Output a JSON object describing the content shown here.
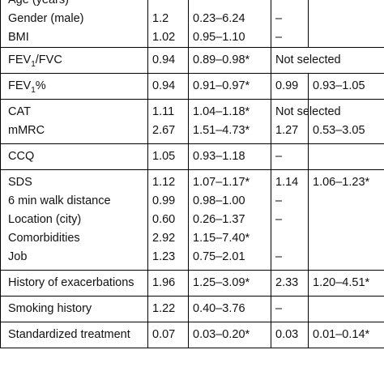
{
  "rows": [
    {
      "lines": [
        {
          "name": "Age (years)",
          "or": "",
          "ci": "",
          "or2": "",
          "ci2": ""
        },
        {
          "name": "Gender (male)",
          "or": "1.2",
          "ci": "0.23–6.24",
          "or2": "–",
          "ci2": ""
        },
        {
          "name": "BMI",
          "or": "1.02",
          "ci": "0.95–1.10",
          "or2": "–",
          "ci2": ""
        }
      ]
    },
    {
      "lines": [
        {
          "name_pre": "FEV",
          "name_sub": "1",
          "name_post": "/FVC",
          "or": "0.94",
          "ci": "0.89–0.98*",
          "or2": "Not selected",
          "ci2": ""
        }
      ],
      "merged": true
    },
    {
      "lines": [
        {
          "name_pre": "FEV",
          "name_sub": "1",
          "name_post": "%",
          "or": "0.94",
          "ci": "0.91–0.97*",
          "or2": "0.99",
          "ci2": "0.93–1.05"
        }
      ]
    },
    {
      "lines": [
        {
          "name": "CAT",
          "or": "1.11",
          "ci": "1.04–1.18*",
          "or2": "Not selected",
          "ci2": "",
          "merged": true
        },
        {
          "name": "mMRC",
          "or": "2.67",
          "ci": "1.51–4.73*",
          "or2": "1.27",
          "ci2": "0.53–3.05"
        }
      ]
    },
    {
      "lines": [
        {
          "name": "CCQ",
          "or": "1.05",
          "ci": "0.93–1.18",
          "or2": "–",
          "ci2": ""
        }
      ]
    },
    {
      "lines": [
        {
          "name": "SDS",
          "or": "1.12",
          "ci": "1.07–1.17*",
          "or2": "1.14",
          "ci2": "1.06–1.23*"
        },
        {
          "name": "6 min walk distance",
          "or": "0.99",
          "ci": "0.98–1.00",
          "or2": "–",
          "ci2": ""
        },
        {
          "name": "Location (city)",
          "or": "0.60",
          "ci": "0.26–1.37",
          "or2": "–",
          "ci2": ""
        },
        {
          "name": "Comorbidities",
          "or": "2.92",
          "ci": "1.15–7.40*",
          "or2": "",
          "ci2": ""
        },
        {
          "name": "Job",
          "or": "1.23",
          "ci": "0.75–2.01",
          "or2": "–",
          "ci2": ""
        }
      ]
    },
    {
      "lines": [
        {
          "name": "History of exacerbations",
          "or": "1.96",
          "ci": "1.25–3.09*",
          "or2": "2.33",
          "ci2": "1.20–4.51*"
        }
      ]
    },
    {
      "lines": [
        {
          "name": "Smoking history",
          "or": "1.22",
          "ci": "0.40–3.76",
          "or2": "–",
          "ci2": ""
        }
      ]
    },
    {
      "lines": [
        {
          "name": "Standardized treatment",
          "or": "0.07",
          "ci": "0.03–0.20*",
          "or2": "0.03",
          "ci2": "0.01–0.14*"
        }
      ]
    }
  ]
}
